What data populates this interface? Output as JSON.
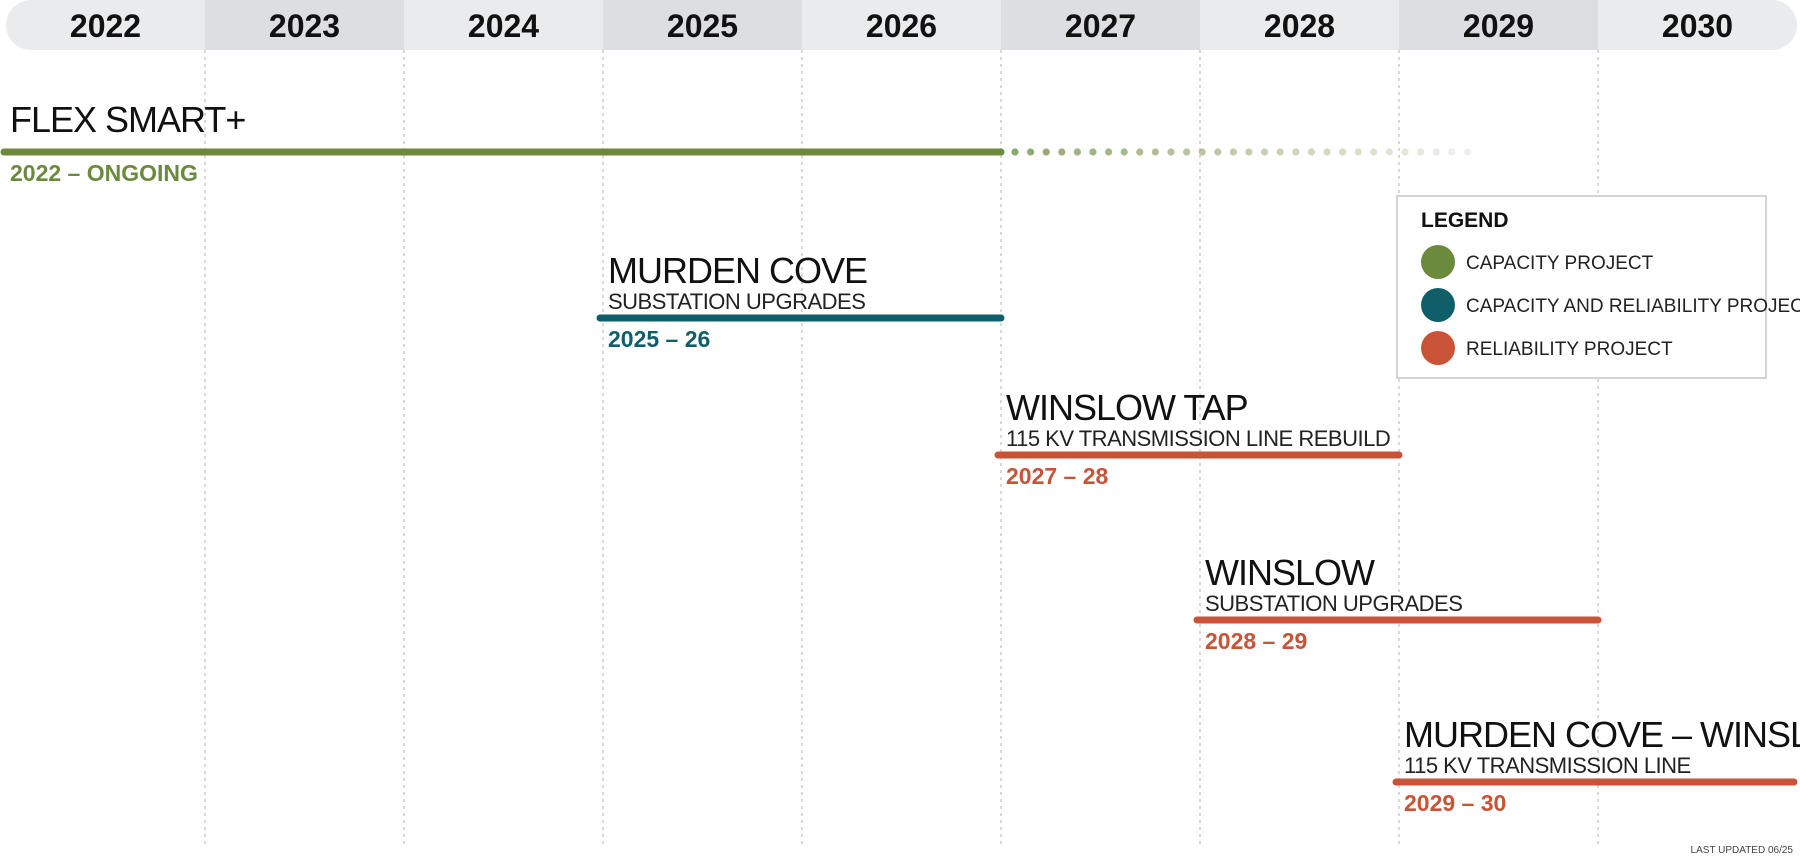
{
  "chart_data": {
    "type": "timeline",
    "years": [
      "2022",
      "2023",
      "2024",
      "2025",
      "2026",
      "2027",
      "2028",
      "2029",
      "2030"
    ],
    "projects": [
      {
        "title": "FLEX SMART+",
        "subtitle": "",
        "range_label": "2022 – ONGOING",
        "start": 2022,
        "end": 2027,
        "ongoing": true,
        "category": "capacity"
      },
      {
        "title": "MURDEN COVE",
        "subtitle": "SUBSTATION UPGRADES",
        "range_label": "2025 – 26",
        "start": 2025,
        "end": 2027,
        "ongoing": false,
        "category": "capacity_reliability"
      },
      {
        "title": "WINSLOW TAP",
        "subtitle": "115 KV TRANSMISSION LINE REBUILD",
        "range_label": "2027 – 28",
        "start": 2027,
        "end": 2029,
        "ongoing": false,
        "category": "reliability"
      },
      {
        "title": "WINSLOW",
        "subtitle": "SUBSTATION UPGRADES",
        "range_label": "2028 – 29",
        "start": 2028,
        "end": 2030,
        "ongoing": false,
        "category": "reliability"
      },
      {
        "title": "MURDEN COVE – WINSLOW",
        "subtitle": "115 KV TRANSMISSION LINE",
        "range_label": "2029 – 30",
        "start": 2029,
        "end": 2031,
        "ongoing": false,
        "category": "reliability"
      }
    ],
    "legend": {
      "title": "LEGEND",
      "items": [
        {
          "key": "capacity",
          "label": "CAPACITY PROJECT",
          "color": "#6b8a3e"
        },
        {
          "key": "capacity_reliability",
          "label": "CAPACITY AND RELIABILITY PROJECT",
          "color": "#0f5f6b"
        },
        {
          "key": "reliability",
          "label": "RELIABILITY PROJECT",
          "color": "#c95336"
        }
      ]
    },
    "footer": "LAST UPDATED 06/25"
  }
}
